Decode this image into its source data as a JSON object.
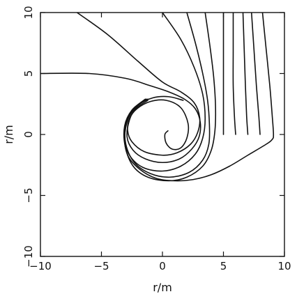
{
  "chart_data": {
    "type": "line",
    "title": "",
    "xlabel": "r/m",
    "ylabel": "r/m",
    "xlim": [
      -10,
      10
    ],
    "ylim": [
      -10,
      10
    ],
    "x_ticks": [
      -10,
      -5,
      0,
      5,
      10
    ],
    "y_ticks": [
      -10,
      -5,
      0,
      5,
      10
    ],
    "tick_labels_x": [
      "−10",
      "−5",
      "0",
      "5",
      "10"
    ],
    "tick_labels_y": [
      "−10",
      "−5",
      "0",
      "5",
      "10"
    ],
    "grid": false,
    "legend": "none",
    "series": [
      {
        "x": [
          -7,
          -4.5,
          -2,
          0,
          1.5,
          2.6,
          3.05,
          2.9,
          2.3,
          1.2,
          0,
          -1.5,
          -2.5,
          -2.85,
          -2.7,
          -2.1,
          -1,
          0.3,
          1.5,
          2.1,
          2,
          1.5,
          0.8,
          0.3,
          0.2,
          0.45
        ],
        "y": [
          10,
          8.2,
          6,
          4.3,
          3.5,
          2.6,
          1.4,
          0.2,
          -0.8,
          -1.5,
          -1.7,
          -1.4,
          -0.6,
          0.3,
          1.3,
          2.1,
          2.7,
          2.8,
          2.2,
          0.9,
          -0.3,
          -1.1,
          -1.2,
          -0.7,
          0,
          0.3
        ]
      },
      {
        "x": [
          -10,
          -6,
          -3,
          -1,
          0.5,
          1.8,
          2.7,
          3.1,
          3,
          2.4,
          1.4,
          0,
          -1.4,
          -2.4,
          -2.9,
          -2.7,
          -2.2,
          -1.2
        ],
        "y": [
          5,
          5,
          4.6,
          4,
          3.5,
          2.9,
          2.1,
          1,
          -0.2,
          -1.2,
          -2,
          -2.3,
          -2,
          -1.3,
          -0.2,
          1.2,
          2.1,
          2.8
        ]
      },
      {
        "x": [
          0,
          1.5,
          2.6,
          3.3,
          3.5,
          3.3,
          2.7,
          1.5,
          0,
          -1.6,
          -2.7,
          -3.1,
          -2.9,
          -2.3,
          -1.2
        ],
        "y": [
          10,
          7.8,
          5.5,
          3.3,
          1.3,
          -0.3,
          -1.6,
          -2.6,
          -3,
          -2.7,
          -1.7,
          -0.3,
          1.2,
          2.2,
          2.9
        ]
      },
      {
        "x": [
          2,
          2.7,
          3.3,
          3.7,
          3.85,
          3.8,
          3.3,
          2.2,
          0.6,
          -1,
          -2.3,
          -3,
          -3,
          -2.4,
          -1.3
        ],
        "y": [
          10,
          7.5,
          5,
          2.8,
          0.8,
          -0.8,
          -2.1,
          -3.1,
          -3.5,
          -3.2,
          -2.3,
          -0.8,
          0.8,
          2,
          2.9
        ]
      },
      {
        "x": [
          3.5,
          3.9,
          4.2,
          4.35,
          4.3,
          4,
          3.3,
          2,
          0.5,
          -1.2,
          -2.4,
          -3.05,
          -3.1,
          -2.5,
          -1.4
        ],
        "y": [
          10,
          7.2,
          4.7,
          2.3,
          0.3,
          -1.3,
          -2.6,
          -3.5,
          -3.8,
          -3.5,
          -2.6,
          -1,
          0.7,
          2,
          2.9
        ]
      },
      {
        "x": [
          5,
          5,
          5,
          5,
          5
        ],
        "y": [
          10,
          7,
          4,
          1.5,
          0
        ]
      },
      {
        "x": [
          5.8,
          5.8,
          5.8,
          5.9,
          6
        ],
        "y": [
          10,
          7,
          4,
          1.5,
          0
        ]
      },
      {
        "x": [
          6.6,
          6.7,
          6.8,
          6.9,
          7
        ],
        "y": [
          10,
          7,
          4,
          1.5,
          0
        ]
      },
      {
        "x": [
          7.3,
          7.5,
          7.7,
          7.9,
          8
        ],
        "y": [
          10,
          7,
          4,
          1.5,
          0
        ]
      },
      {
        "x": [
          8.2,
          8.5,
          8.8,
          9,
          9.1,
          9,
          8.5,
          7,
          5.5,
          4,
          2.5,
          1,
          -0.5,
          -1.8,
          -2.8,
          -3.1,
          -2.8,
          -2,
          -0.8,
          0.5,
          1.7
        ],
        "y": [
          10,
          7,
          4,
          1.5,
          0,
          -0.4,
          -0.8,
          -1.7,
          -2.6,
          -3.3,
          -3.7,
          -3.8,
          -3.6,
          -2.9,
          -1.8,
          -0.3,
          1.3,
          2.4,
          3,
          3.1,
          2.8
        ]
      }
    ]
  }
}
